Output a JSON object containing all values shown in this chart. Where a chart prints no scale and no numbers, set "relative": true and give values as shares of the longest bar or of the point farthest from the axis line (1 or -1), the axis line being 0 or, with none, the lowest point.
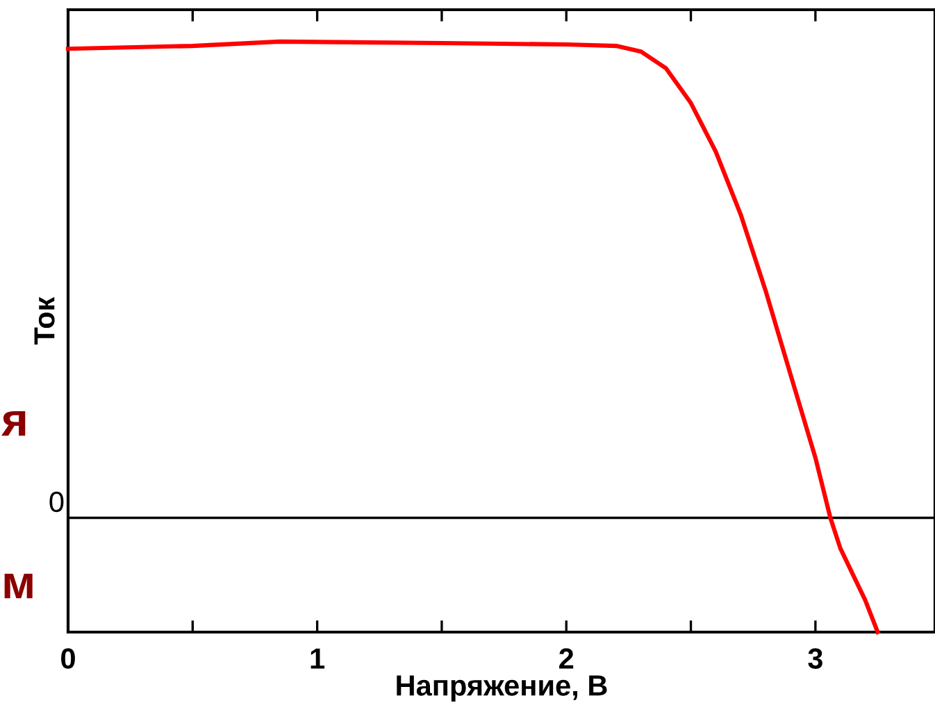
{
  "chart_data": {
    "type": "line",
    "relative": true,
    "xlabel": "Напряжение, В",
    "ylabel": "Ток",
    "x": [
      0,
      0.5,
      0.85,
      1.5,
      2.0,
      2.2,
      2.3,
      2.4,
      2.5,
      2.6,
      2.7,
      2.8,
      2.9,
      3.0,
      3.06,
      3.1,
      3.2,
      3.25
    ],
    "series": [
      {
        "color": "#ff0000",
        "values": [
          0.985,
          0.991,
          1.0,
          0.997,
          0.994,
          0.991,
          0.979,
          0.944,
          0.871,
          0.769,
          0.637,
          0.477,
          0.301,
          0.126,
          0,
          -0.064,
          -0.173,
          -0.24
        ]
      }
    ],
    "xlim": [
      0,
      3.48
    ],
    "xticks": [
      0,
      {
        "value": 0.5,
        "label": null
      },
      1,
      {
        "value": 1.5,
        "label": null
      },
      2,
      {
        "value": 2.5,
        "label": null
      },
      3
    ],
    "ref_lines": [
      {
        "axis": "y",
        "value": 0,
        "label": "0",
        "color": "#000000"
      }
    ],
    "annotations": [
      "я",
      "м"
    ],
    "legend": false,
    "marker": "none",
    "line_style": "solid"
  }
}
